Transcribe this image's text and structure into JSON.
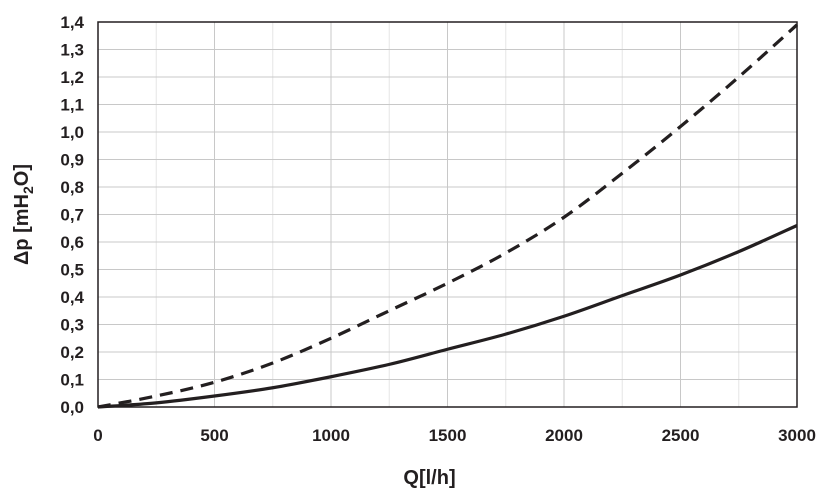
{
  "chart_data": {
    "type": "line",
    "title": "",
    "xlabel": "Q[l/h]",
    "ylabel": "Δp [mH₂O]",
    "xlim": [
      0,
      3000
    ],
    "ylim": [
      0,
      1.4
    ],
    "x_ticks": [
      "0",
      "500",
      "1000",
      "1500",
      "2000",
      "2500",
      "3000"
    ],
    "y_ticks": [
      "0,0",
      "0,1",
      "0,2",
      "0,3",
      "0,4",
      "0,5",
      "0,6",
      "0,7",
      "0,8",
      "0,9",
      "1,0",
      "1,1",
      "1,2",
      "1,3",
      "1,4"
    ],
    "grid": true,
    "legend": "none",
    "series": [
      {
        "style": "dashed",
        "color": "#231f20",
        "x": [
          0,
          250,
          500,
          750,
          1000,
          1250,
          1500,
          1750,
          2000,
          2250,
          2500,
          2750,
          3000
        ],
        "y": [
          0,
          0.04,
          0.09,
          0.16,
          0.25,
          0.35,
          0.45,
          0.56,
          0.69,
          0.85,
          1.02,
          1.2,
          1.39
        ]
      },
      {
        "style": "solid",
        "color": "#231f20",
        "x": [
          0,
          250,
          500,
          750,
          1000,
          1250,
          1500,
          1750,
          2000,
          2250,
          2500,
          2750,
          3000
        ],
        "y": [
          0,
          0.015,
          0.04,
          0.07,
          0.11,
          0.155,
          0.21,
          0.265,
          0.33,
          0.405,
          0.48,
          0.565,
          0.66
        ]
      }
    ]
  }
}
